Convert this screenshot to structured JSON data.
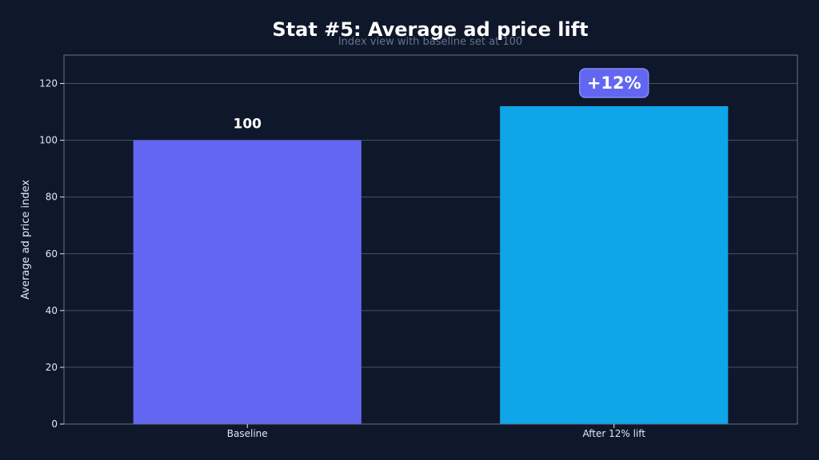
{
  "chart_data": {
    "type": "bar",
    "title": "Stat #5: Average ad price lift",
    "subtitle": "Index view with baseline set at 100",
    "xlabel": "",
    "ylabel": "Average ad price index",
    "categories": [
      "Baseline",
      "After 12% lift"
    ],
    "values": [
      100,
      112
    ],
    "value_labels": [
      "100",
      ""
    ],
    "annotation": {
      "text": "+12%",
      "category_index": 1,
      "color": "#6366f1"
    },
    "bar_colors": [
      "#6366f1",
      "#0ea5e9"
    ],
    "ylim": [
      0,
      130
    ],
    "yticks": [
      0,
      20,
      40,
      60,
      80,
      100,
      120
    ],
    "grid": true,
    "legend": "none"
  },
  "colors": {
    "background": "#0f172a",
    "grid": "#475569",
    "axis": "#64748b",
    "text": "#e2e8f0"
  }
}
